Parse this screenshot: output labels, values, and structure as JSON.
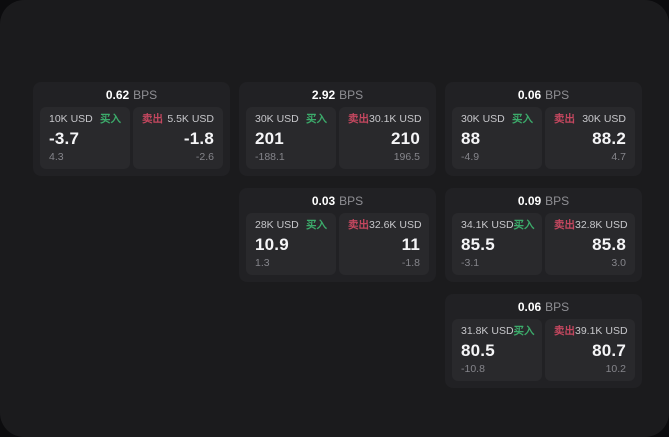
{
  "labels": {
    "buy": "买入",
    "sell": "卖出",
    "bps": "BPS"
  },
  "colors": {
    "background_outer": "#0c0c0e",
    "background_surface": "#1b1b1d",
    "card_background": "#212124",
    "panel_background": "#29292c",
    "buy_green": "#3cab6b",
    "sell_red": "#c4475f",
    "price_text": "#f5f5f7",
    "secondary_text": "#85858b"
  },
  "cards": [
    {
      "bps": "0.62",
      "buy": {
        "amount": "10K USD",
        "price": "-3.7",
        "delta": "4.3"
      },
      "sell": {
        "amount": "5.5K USD",
        "price": "-1.8",
        "delta": "-2.6"
      }
    },
    {
      "bps": "2.92",
      "buy": {
        "amount": "30K USD",
        "price": "201",
        "delta": "-188.1"
      },
      "sell": {
        "amount": "30.1K USD",
        "price": "210",
        "delta": "196.5"
      }
    },
    {
      "bps": "0.06",
      "buy": {
        "amount": "30K USD",
        "price": "88",
        "delta": "-4.9"
      },
      "sell": {
        "amount": "30K USD",
        "price": "88.2",
        "delta": "4.7"
      }
    },
    {
      "bps": "0.03",
      "buy": {
        "amount": "28K USD",
        "price": "10.9",
        "delta": "1.3"
      },
      "sell": {
        "amount": "32.6K USD",
        "price": "11",
        "delta": "-1.8"
      }
    },
    {
      "bps": "0.09",
      "buy": {
        "amount": "34.1K USD",
        "price": "85.5",
        "delta": "-3.1"
      },
      "sell": {
        "amount": "32.8K USD",
        "price": "85.8",
        "delta": "3.0"
      }
    },
    {
      "bps": "0.06",
      "buy": {
        "amount": "31.8K USD",
        "price": "80.5",
        "delta": "-10.8"
      },
      "sell": {
        "amount": "39.1K USD",
        "price": "80.7",
        "delta": "10.2"
      }
    }
  ]
}
